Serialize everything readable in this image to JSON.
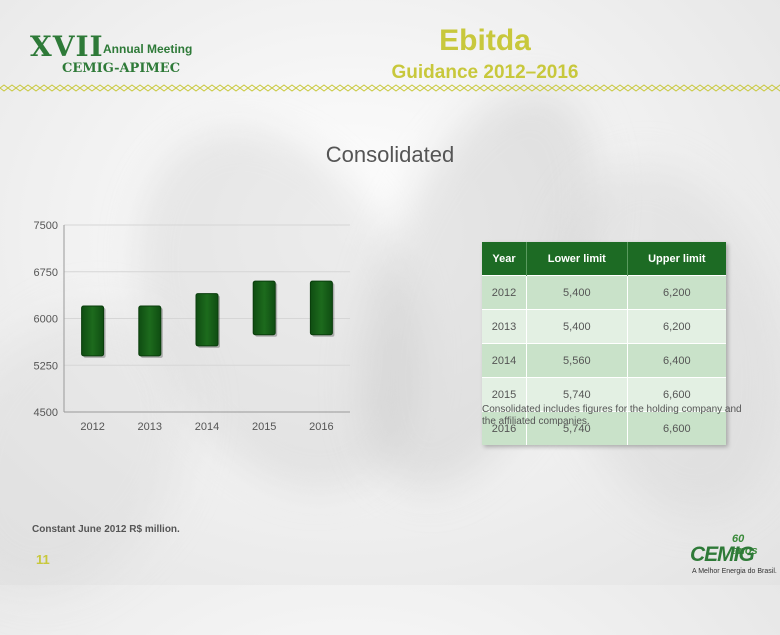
{
  "logo": {
    "edition": "XVII",
    "event": "Annual Meeting",
    "org": "CEMIG-APIMEC"
  },
  "header": {
    "title": "Ebitda",
    "subtitle": "Guidance 2012–2016"
  },
  "chart_data": {
    "type": "bar",
    "subtype": "floating-range",
    "title": "Consolidated",
    "categories": [
      "2012",
      "2013",
      "2014",
      "2015",
      "2016"
    ],
    "series": [
      {
        "name": "Lower limit",
        "values": [
          5400,
          5400,
          5560,
          5740,
          5740
        ]
      },
      {
        "name": "Upper limit",
        "values": [
          6200,
          6200,
          6400,
          6600,
          6600
        ]
      }
    ],
    "ylim": [
      4500,
      7500
    ],
    "yticks": [
      4500,
      5250,
      6000,
      6750,
      7500
    ],
    "xlabel": "",
    "ylabel": "",
    "grid": true,
    "bar_color": "#1d6b1d"
  },
  "table": {
    "headers": [
      "Year",
      "Lower limit",
      "Upper limit"
    ],
    "rows": [
      [
        "2012",
        "5,400",
        "6,200"
      ],
      [
        "2013",
        "5,400",
        "6,200"
      ],
      [
        "2014",
        "5,560",
        "6,400"
      ],
      [
        "2015",
        "5,740",
        "6,600"
      ],
      [
        "2016",
        "5,740",
        "6,600"
      ]
    ]
  },
  "note": "Consolidated includes figures for the holding company and the affiliated companies.",
  "footnote": "Constant June 2012 R$ million.",
  "page_number": "11",
  "brand": {
    "anniversary": "60 anos",
    "name": "CEMIG",
    "tagline": "A Melhor Energia do Brasil."
  },
  "colors": {
    "accent_green": "#1d6b24",
    "title_yellow": "#c8c83c"
  }
}
